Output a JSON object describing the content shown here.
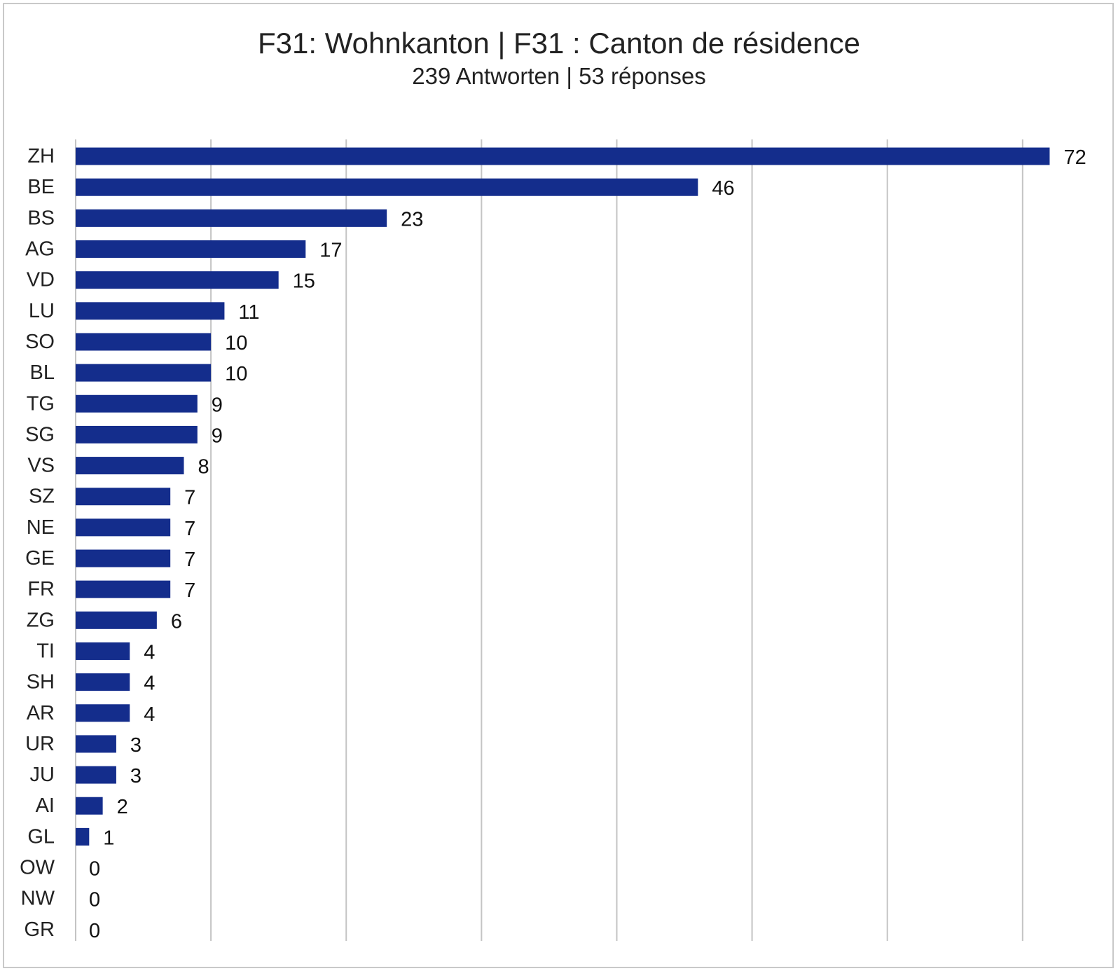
{
  "chart_data": {
    "type": "bar",
    "orientation": "horizontal",
    "title": "F31: Wohnkanton | F31 : Canton de résidence",
    "subtitle": "239 Antworten | 53 réponses",
    "categories": [
      "ZH",
      "BE",
      "BS",
      "AG",
      "VD",
      "LU",
      "SO",
      "BL",
      "TG",
      "SG",
      "VS",
      "SZ",
      "NE",
      "GE",
      "FR",
      "ZG",
      "TI",
      "SH",
      "AR",
      "UR",
      "JU",
      "AI",
      "GL",
      "OW",
      "NW",
      "GR"
    ],
    "values": [
      72,
      46,
      23,
      17,
      15,
      11,
      10,
      10,
      9,
      9,
      8,
      7,
      7,
      7,
      7,
      6,
      4,
      4,
      4,
      3,
      3,
      2,
      1,
      0,
      0,
      0
    ],
    "xlim": [
      0,
      77
    ],
    "gridline_step": 10,
    "grid": true,
    "show_x_tick_labels": false,
    "data_labels": true,
    "bar_color": "#142d8c",
    "grid_color": "#c4c4c4"
  }
}
